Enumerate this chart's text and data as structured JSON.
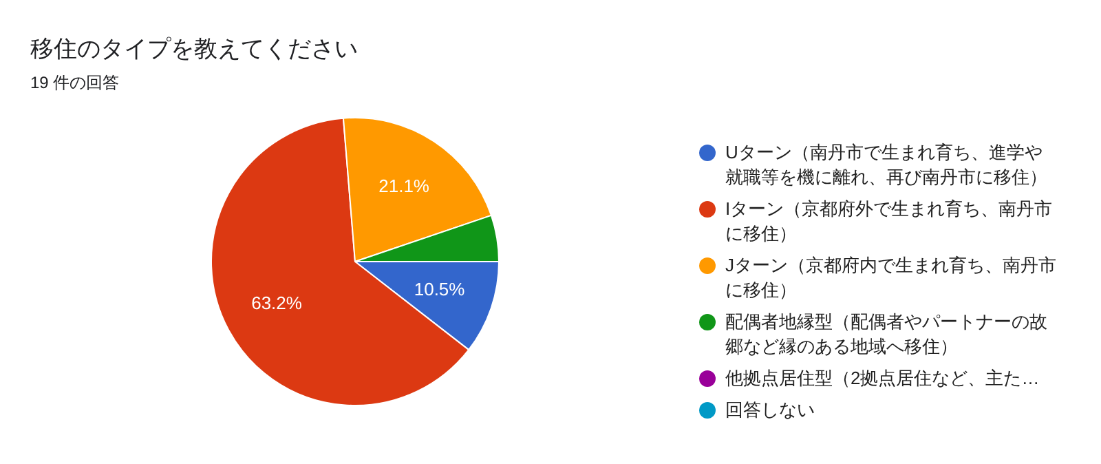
{
  "chart_data": {
    "type": "pie",
    "title": "移住のタイプを教えてください",
    "subtitle": "19 件の回答",
    "categories": [
      "Uターン（南丹市で生まれ育ち、進学や就職等を機に離れ、再び南丹市に移住）",
      "Iターン（京都府外で生まれ育ち、南丹市に移住）",
      "Jターン（京都府内で生まれ育ち、南丹市に移住）",
      "配偶者地縁型（配偶者やパートナーの故郷など縁のある地域へ移住）",
      "他拠点居住型（2拠点居住など、主た…",
      "回答しない"
    ],
    "values": [
      10.5,
      63.2,
      21.1,
      5.2,
      0,
      0
    ],
    "colors": [
      "#3366cc",
      "#dc3912",
      "#ff9900",
      "#109618",
      "#990099",
      "#0099c6"
    ],
    "value_labels": [
      "10.5%",
      "63.2%",
      "21.1%",
      null,
      null,
      null
    ],
    "legend": "right"
  }
}
